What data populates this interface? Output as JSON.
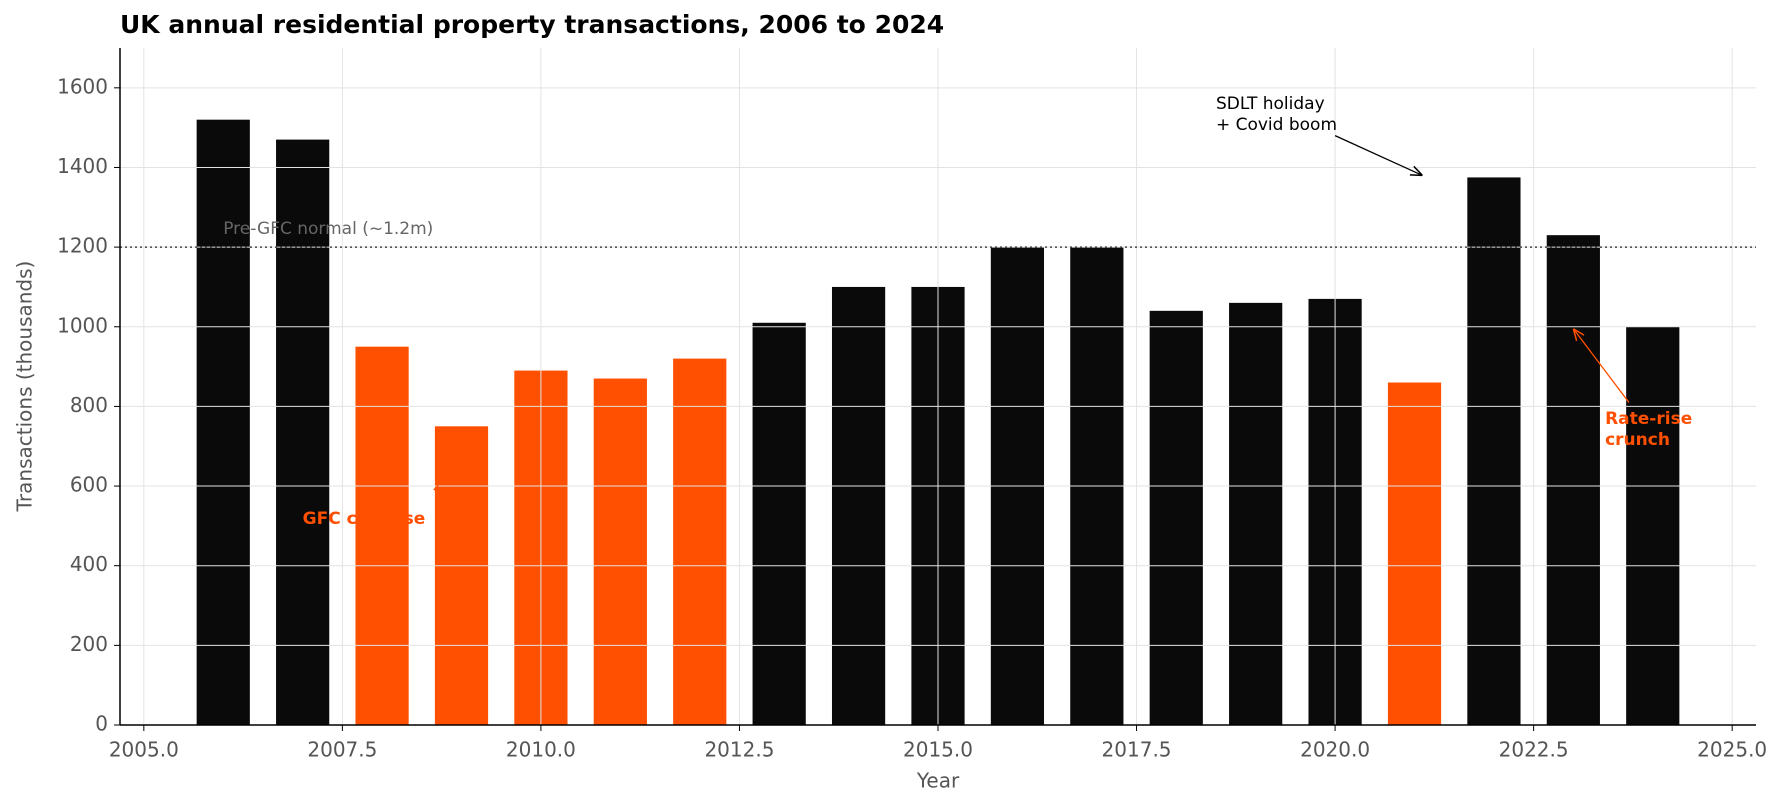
{
  "chart_data": {
    "type": "bar",
    "title": "UK annual residential property transactions, 2006 to 2024",
    "x_label": "Year",
    "y_label": "Transactions (thousands)",
    "x": [
      2006,
      2007,
      2008,
      2009,
      2010,
      2011,
      2012,
      2013,
      2014,
      2015,
      2016,
      2017,
      2018,
      2019,
      2020,
      2021,
      2022,
      2023,
      2024
    ],
    "values": [
      1520,
      1470,
      950,
      750,
      890,
      870,
      920,
      1010,
      1100,
      1100,
      1200,
      1200,
      1040,
      1060,
      1070,
      860,
      1375,
      1230,
      1000
    ],
    "colors": [
      "#0a0a0a",
      "#0a0a0a",
      "#ff4f00",
      "#ff4f00",
      "#ff4f00",
      "#ff4f00",
      "#ff4f00",
      "#0a0a0a",
      "#0a0a0a",
      "#0a0a0a",
      "#0a0a0a",
      "#0a0a0a",
      "#0a0a0a",
      "#0a0a0a",
      "#0a0a0a",
      "#ff4f00",
      "#0a0a0a",
      "#0a0a0a",
      "#0a0a0a"
    ],
    "xlim": [
      2004.7,
      2025.3
    ],
    "ylim": [
      0,
      1700
    ],
    "xticks": [
      {
        "value": 2005,
        "label": "2005.0"
      },
      {
        "value": 2007.5,
        "label": "2007.5"
      },
      {
        "value": 2010,
        "label": "2010.0"
      },
      {
        "value": 2012.5,
        "label": "2012.5"
      },
      {
        "value": 2015,
        "label": "2015.0"
      },
      {
        "value": 2017.5,
        "label": "2017.5"
      },
      {
        "value": 2020,
        "label": "2020.0"
      },
      {
        "value": 2022.5,
        "label": "2022.5"
      },
      {
        "value": 2025,
        "label": "2025.0"
      }
    ],
    "yticks": [
      0,
      200,
      400,
      600,
      800,
      1000,
      1200,
      1400,
      1600
    ],
    "grid": true,
    "reference_line": {
      "value": 1200,
      "label": "Pre-GFC normal (~1.2m)"
    },
    "annotations": [
      "GFC collapse",
      "SDLT holiday\n+ Covid boom",
      "Rate-rise\ncrunch"
    ]
  }
}
